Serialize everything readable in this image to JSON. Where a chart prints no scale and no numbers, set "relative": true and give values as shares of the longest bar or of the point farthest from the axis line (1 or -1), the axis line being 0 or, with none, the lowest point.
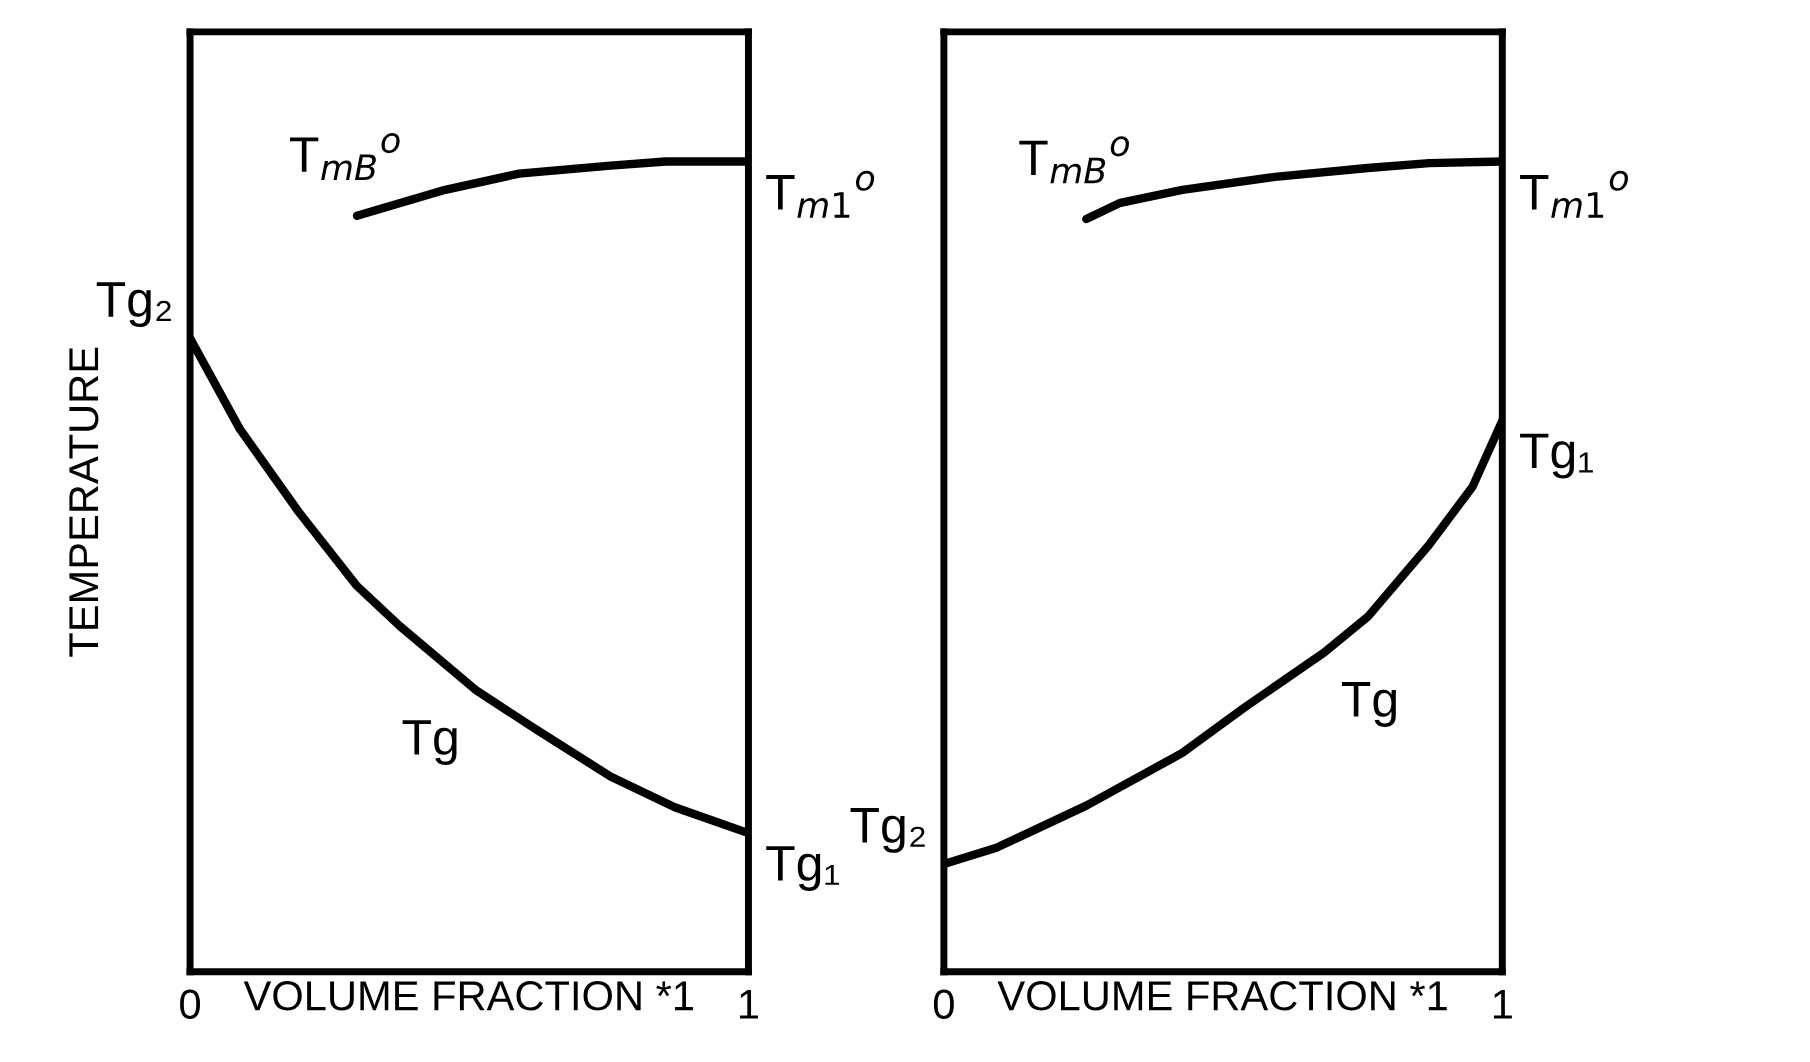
{
  "chart_data": [
    {
      "type": "line",
      "relative": true,
      "ylabel": "TEMPERATURE",
      "xlabel": "VOLUME FRACTION *1",
      "xlim": [
        0,
        1
      ],
      "xticks": [
        0,
        1
      ],
      "tick_labels": "x",
      "marker": "none",
      "line_style": "solid",
      "series": [
        {
          "color": "#000000",
          "x": [
            0,
            0.089,
            0.194,
            0.299,
            0.375,
            0.513,
            0.622,
            0.753,
            0.868,
            1
          ],
          "values": [
            0.782,
            0.67,
            0.568,
            0.476,
            0.427,
            0.347,
            0.298,
            0.241,
            0.203,
            0.171
          ]
        },
        {
          "color": "#000000",
          "x": [
            0.299,
            0.457,
            0.589,
            0.753,
            0.852,
            1
          ],
          "values": [
            0.933,
            0.965,
            0.985,
            0.995,
            1,
            1
          ]
        }
      ],
      "annotations": [
        {
          "text": "Tg₂",
          "x": 0,
          "y": 0.782
        },
        {
          "text": "Tg₁",
          "x": 1,
          "y": 0.171
        },
        {
          "text": "Tg",
          "x": 0.513,
          "y": 0.347
        },
        {
          "text": "T$_{mB}$$^{o}$",
          "x": 0.299,
          "y": 0.933
        },
        {
          "text": "T$_{m1}$$^{o}$",
          "x": 1,
          "y": 1
        }
      ]
    },
    {
      "type": "line",
      "relative": true,
      "xlabel": "VOLUME FRACTION *1",
      "xlim": [
        0,
        1
      ],
      "xticks": [
        0,
        1
      ],
      "tick_labels": "x",
      "marker": "none",
      "line_style": "solid",
      "series": [
        {
          "color": "#000000",
          "x": [
            0,
            0.094,
            0.255,
            0.427,
            0.538,
            0.681,
            0.759,
            0.869,
            0.947,
            1
          ],
          "values": [
            0.133,
            0.153,
            0.205,
            0.27,
            0.326,
            0.394,
            0.438,
            0.527,
            0.599,
            0.68
          ]
        },
        {
          "color": "#000000",
          "x": [
            0.255,
            0.316,
            0.427,
            0.593,
            0.759,
            0.869,
            1
          ],
          "values": [
            0.929,
            0.949,
            0.965,
            0.981,
            0.992,
            0.998,
            1
          ]
        }
      ],
      "annotations": [
        {
          "text": "Tg₂",
          "x": 0,
          "y": 0.133
        },
        {
          "text": "Tg₁",
          "x": 1,
          "y": 0.68
        },
        {
          "text": "Tg",
          "x": 0.681,
          "y": 0.394
        },
        {
          "text": "T$_{mB}$$^{o}$",
          "x": 0.255,
          "y": 0.929
        },
        {
          "text": "T$_{m1}$$^{o}$",
          "x": 1,
          "y": 1
        }
      ]
    }
  ]
}
